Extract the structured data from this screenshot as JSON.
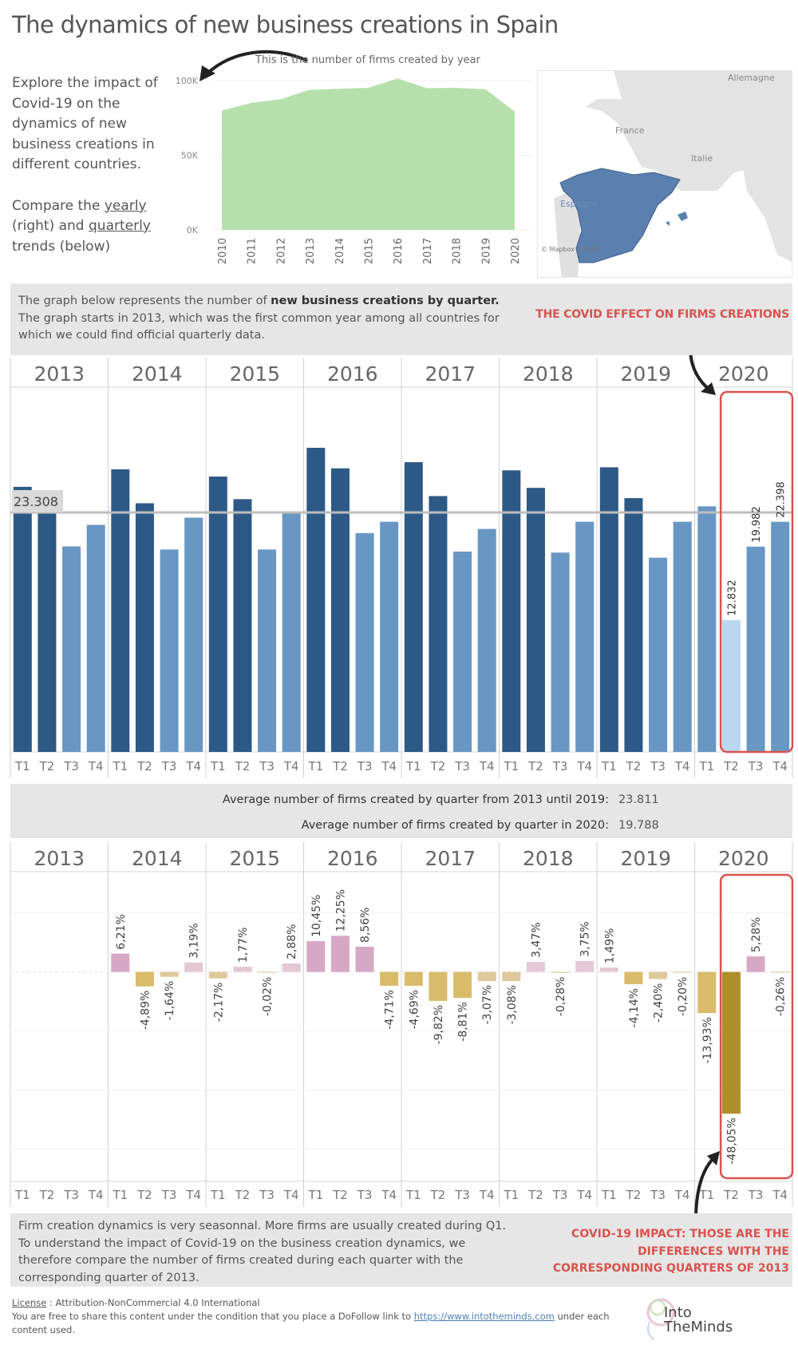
{
  "title": "The dynamics of new business creations in Spain",
  "intro": {
    "line1": "Explore the impact of Covid-19 on the dynamics of new business creations in different countries.",
    "compare_prefix": "Compare the ",
    "yearly_link": "yearly",
    "right_text": " (right) and ",
    "quarterly_link": "quarterly",
    "trends_text": " trends (below)"
  },
  "yearly_annotation": "This is the number of firms created by year",
  "map": {
    "labels": {
      "germany": "Allemagne",
      "france": "France",
      "italy": "Italie",
      "spain": "Espagne"
    },
    "attribution": "© Mapbox © OSM",
    "highlight_color": "#5b7fae"
  },
  "band1": {
    "line1_prefix": "The graph below represents the number of ",
    "line1_bold": "new business creations by quarter.",
    "line2": "The graph starts in 2013, which was the first common year among all countries for which we could find official quarterly data.",
    "covid_note": "THE COVID EFFECT ON FIRMS CREATIONS"
  },
  "averages": {
    "label_2013_2019": "Average number of firms created by quarter from 2013 until 2019:",
    "value_2013_2019": "23.811",
    "label_2020": "Average number of firms created by quarter in 2020:",
    "value_2020": "19.788"
  },
  "band3": {
    "text": "Firm creation dynamics is very seasonnal. More firms are usually created during Q1. To understand the impact of Covid-19 on the business creation dynamics, we therefore compare the number of firms created during each quarter with the corresponding quarter of 2013.",
    "covid_note": "COVID-19 IMPACT: THOSE ARE THE DIFFERENCES WITH THE CORRESPONDING QUARTERS OF 2013"
  },
  "footer": {
    "license_label": "License",
    "license_text": " : Attribution-NonCommercial 4.0 International",
    "share_text": "You are free to share this content under the condition that you place a DoFollow link to ",
    "link": "https://www.intotheminds.com",
    "share_suffix": " under each content used.",
    "logo_line1": "Into",
    "logo_line2": "TheMinds"
  },
  "colors": {
    "area": "#b6e0ab",
    "bar_dark": "#2d5986",
    "bar_mid": "#6897c3",
    "bar_light": "#b9d8ef",
    "pos_strong": "#d6a8c6",
    "pos_light": "#e4c8d6",
    "neg_light": "#dfc99a",
    "neg_mid": "#d9bb6a",
    "neg_strong": "#b08f2a",
    "highlight_box": "#d9534f",
    "ref_line": "#bdbdbd"
  },
  "chart_data": [
    {
      "type": "area",
      "title": "This is the number of firms created by year",
      "x": [
        "2010",
        "2011",
        "2012",
        "2013",
        "2014",
        "2015",
        "2016",
        "2017",
        "2018",
        "2019",
        "2020"
      ],
      "values": [
        80000,
        85000,
        87500,
        93800,
        94600,
        95200,
        101400,
        95000,
        95200,
        94300,
        79200
      ],
      "yticks": [
        "0K",
        "50K",
        "100K"
      ],
      "ylim": [
        0,
        100000
      ],
      "xlabel": "",
      "ylabel": ""
    },
    {
      "type": "bar",
      "title": "New business creations by quarter",
      "years": [
        "2013",
        "2014",
        "2015",
        "2016",
        "2017",
        "2018",
        "2019",
        "2020"
      ],
      "quarters": [
        "T1",
        "T2",
        "T3",
        "T4"
      ],
      "values": [
        [
          25800,
          23400,
          20000,
          22100
        ],
        [
          27500,
          24200,
          19700,
          22800
        ],
        [
          26800,
          24600,
          19700,
          23400
        ],
        [
          29600,
          27600,
          21300,
          22400
        ],
        [
          28200,
          24900,
          19500,
          21700
        ],
        [
          27400,
          25700,
          19400,
          22400
        ],
        [
          27700,
          24700,
          18900,
          22400
        ],
        [
          23900,
          12832,
          19982,
          22398
        ]
      ],
      "data_labels": {
        "2020-T2": "12.832",
        "2020-T3": "19.982",
        "2020-T4": "22.398"
      },
      "reference_line": {
        "value": 23308,
        "label": "23.308"
      },
      "ylim": [
        0,
        35500
      ],
      "highlight": {
        "year": "2020",
        "quarters": [
          "T2",
          "T3",
          "T4"
        ]
      }
    },
    {
      "type": "bar",
      "title": "Difference with the corresponding quarter of 2013 (%)",
      "years": [
        "2013",
        "2014",
        "2015",
        "2016",
        "2017",
        "2018",
        "2019",
        "2020"
      ],
      "quarters": [
        "T1",
        "T2",
        "T3",
        "T4"
      ],
      "values": [
        [
          null,
          null,
          null,
          null
        ],
        [
          6.21,
          -4.89,
          -1.64,
          3.19
        ],
        [
          -2.17,
          1.77,
          -0.02,
          2.88
        ],
        [
          10.45,
          12.25,
          8.56,
          -4.71
        ],
        [
          -4.69,
          -9.82,
          -8.81,
          -3.07
        ],
        [
          -3.08,
          3.47,
          -0.28,
          3.75
        ],
        [
          1.49,
          -4.14,
          -2.4,
          -0.2
        ],
        [
          -13.93,
          -48.05,
          5.28,
          -0.26
        ]
      ],
      "labels": [
        [
          null,
          null,
          null,
          null
        ],
        [
          "6,21%",
          "-4,89%",
          "-1,64%",
          "3,19%"
        ],
        [
          "-2,17%",
          "1,77%",
          "-0,02%",
          "2,88%"
        ],
        [
          "10,45%",
          "12,25%",
          "8,56%",
          "-4,71%"
        ],
        [
          "-4,69%",
          "-9,82%",
          "-8,81%",
          "-3,07%"
        ],
        [
          "-3,08%",
          "3,47%",
          "-0,28%",
          "3,75%"
        ],
        [
          "1,49%",
          "-4,14%",
          "-2,40%",
          "-0,20%"
        ],
        [
          "-13,93%",
          "-48,05%",
          "5,28%",
          "-0,26%"
        ]
      ],
      "gridlines": [
        20,
        0,
        -20,
        -40,
        -60
      ],
      "ylim": [
        -71,
        34
      ],
      "highlight": {
        "year": "2020",
        "quarters": [
          "T2",
          "T3",
          "T4"
        ]
      }
    }
  ]
}
